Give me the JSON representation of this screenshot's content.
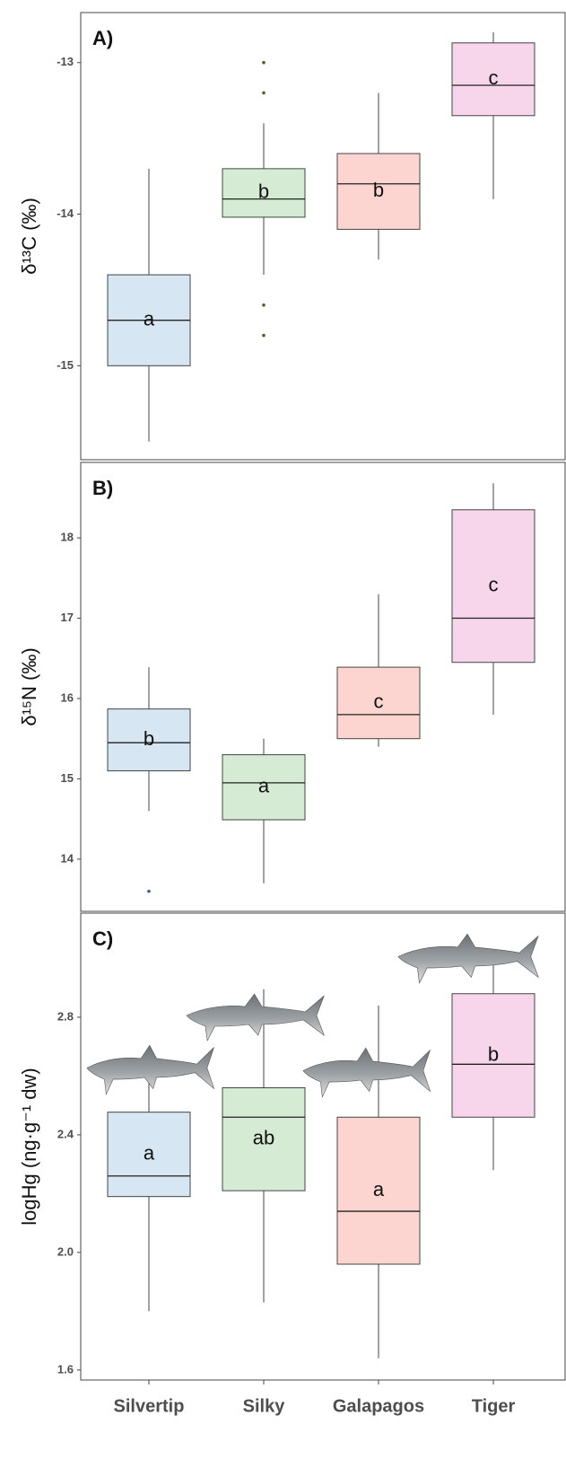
{
  "chart_data": [
    {
      "type": "box",
      "panel_label": "A)",
      "ylabel": "δ¹³C (‰)",
      "ylim": [
        -15.62,
        -12.67
      ],
      "yticks": [
        -13,
        -14,
        -15
      ],
      "colors": [
        "#d6e6f2",
        "#d5ebd3",
        "#fdd5d0",
        "#f7d6ec"
      ],
      "outlier_color": "#5a5a2a",
      "boxes": [
        {
          "whisker_low": -15.5,
          "q1": -15.0,
          "median": -14.7,
          "q3": -14.4,
          "whisker_high": -13.7,
          "outliers": [],
          "letter": "a"
        },
        {
          "whisker_low": -14.4,
          "q1": -14.02,
          "median": -13.9,
          "q3": -13.7,
          "whisker_high": -13.4,
          "outliers": [
            -13.0,
            -13.2,
            -14.6,
            -14.8
          ],
          "letter": "b"
        },
        {
          "whisker_low": -14.3,
          "q1": -14.1,
          "median": -13.8,
          "q3": -13.6,
          "whisker_high": -13.2,
          "outliers": [],
          "letter": "b"
        },
        {
          "whisker_low": -13.9,
          "q1": -13.35,
          "median": -13.15,
          "q3": -12.87,
          "whisker_high": -12.8,
          "outliers": [],
          "letter": "c"
        }
      ]
    },
    {
      "type": "box",
      "panel_label": "B)",
      "ylabel": "δ¹⁵N (‰)",
      "ylim": [
        13.35,
        18.94
      ],
      "yticks": [
        14,
        15,
        16,
        17,
        18
      ],
      "colors": [
        "#d6e6f2",
        "#d5ebd3",
        "#fdd5d0",
        "#f7d6ec"
      ],
      "outlier_color": "#3060a0",
      "boxes": [
        {
          "whisker_low": 14.6,
          "q1": 15.1,
          "median": 15.45,
          "q3": 15.87,
          "whisker_high": 16.39,
          "outliers": [
            13.6
          ],
          "letter": "b"
        },
        {
          "whisker_low": 13.7,
          "q1": 14.49,
          "median": 14.95,
          "q3": 15.3,
          "whisker_high": 15.5,
          "outliers": [],
          "letter": "a"
        },
        {
          "whisker_low": 15.4,
          "q1": 15.5,
          "median": 15.8,
          "q3": 16.39,
          "whisker_high": 17.3,
          "outliers": [],
          "letter": "c"
        },
        {
          "whisker_low": 15.8,
          "q1": 16.45,
          "median": 17.0,
          "q3": 18.35,
          "whisker_high": 18.68,
          "outliers": [],
          "letter": "c"
        }
      ]
    },
    {
      "type": "box",
      "panel_label": "C)",
      "ylabel": "logHg (ng·g⁻¹ dw)",
      "ylim": [
        1.566,
        3.154
      ],
      "yticks": [
        {
          "value": 1.6,
          "label": "1.6"
        },
        {
          "value": 2.0,
          "label": "2.0"
        },
        {
          "value": 2.4,
          "label": "2.4"
        },
        {
          "value": 2.8,
          "label": "2.8"
        }
      ],
      "categories": [
        "Silvertip",
        "Silky",
        "Galapagos",
        "Tiger"
      ],
      "colors": [
        "#d6e6f2",
        "#d5ebd3",
        "#fdd5d0",
        "#f7d6ec"
      ],
      "outlier_color": "#555555",
      "boxes": [
        {
          "whisker_low": 1.8,
          "q1": 2.19,
          "median": 2.26,
          "q3": 2.477,
          "whisker_high": 2.6,
          "outliers": [],
          "letter": "a"
        },
        {
          "whisker_low": 1.83,
          "q1": 2.21,
          "median": 2.46,
          "q3": 2.56,
          "whisker_high": 2.895,
          "outliers": [],
          "letter": "ab"
        },
        {
          "whisker_low": 1.64,
          "q1": 1.96,
          "median": 2.14,
          "q3": 2.46,
          "whisker_high": 2.84,
          "outliers": [],
          "letter": "a"
        },
        {
          "whisker_low": 2.28,
          "q1": 2.46,
          "median": 2.64,
          "q3": 2.88,
          "whisker_high": 3.0,
          "outliers": [],
          "letter": "b"
        }
      ]
    }
  ]
}
